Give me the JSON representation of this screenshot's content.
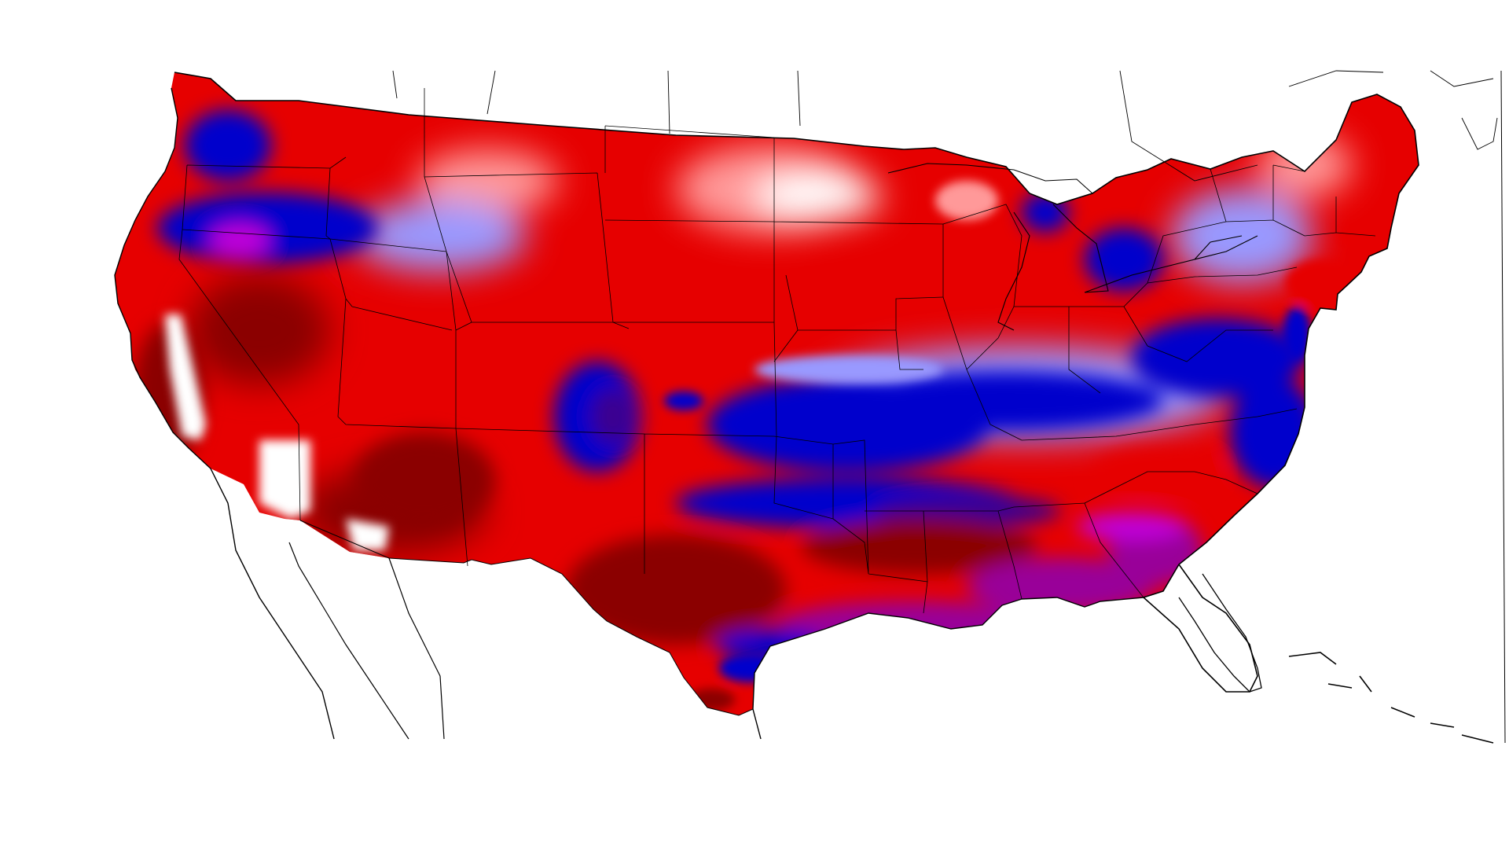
{
  "map": {
    "projection": "lambert-conformal",
    "region": "contiguous-united-states",
    "boundaries": [
      "coastlines",
      "state-borders",
      "country-borders"
    ],
    "legend": "none",
    "colors": {
      "background": "#ffffff",
      "boundary_line": "#000000",
      "deep_red": "#8b0000",
      "red": "#e60000",
      "light_red": "#ff9999",
      "near_zero": "#ffffff",
      "light_blue": "#9999ff",
      "blue": "#0000cc",
      "indigo": "#3a0090",
      "violet": "#c000d8",
      "purple": "#990099"
    }
  }
}
